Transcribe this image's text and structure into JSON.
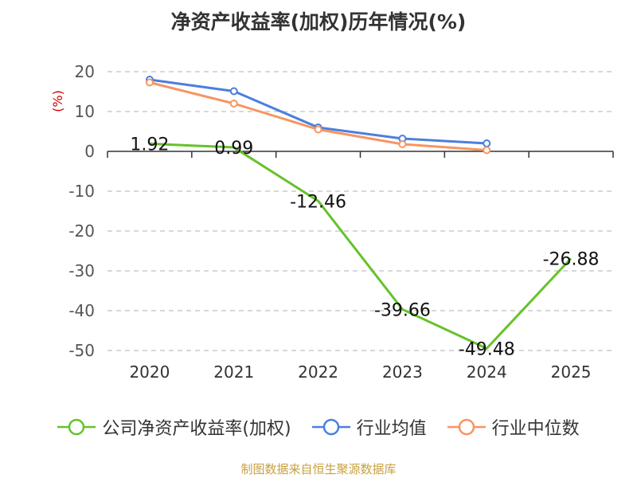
{
  "chart_data": {
    "type": "line",
    "title": "净资产收益率(加权)历年情况(%)",
    "ylabel": "(%)",
    "xlabel": "",
    "categories": [
      "2020",
      "2021",
      "2022",
      "2023",
      "2024",
      "2025"
    ],
    "ylim": [
      -50,
      20
    ],
    "yticks": [
      20,
      10,
      0,
      -10,
      -20,
      -30,
      -40,
      -50
    ],
    "ytick_labels": [
      "20",
      "10",
      "0",
      "-10",
      "-20",
      "-30",
      "-40",
      "-50"
    ],
    "grid": "horizontal-dashed",
    "legend_position": "bottom",
    "series": [
      {
        "name": "公司净资产收益率(加权)",
        "color": "#66c22a",
        "values": [
          1.92,
          0.99,
          -12.46,
          -39.66,
          -49.48,
          -26.88
        ],
        "labels": [
          "1.92",
          "0.99",
          "-12.46",
          "-39.66",
          "-49.48",
          "-26.88"
        ],
        "markers": false
      },
      {
        "name": "行业均值",
        "color": "#4c7fde",
        "values": [
          18.0,
          15.1,
          6.0,
          3.2,
          2.0,
          null
        ],
        "markers": true
      },
      {
        "name": "行业中位数",
        "color": "#f79560",
        "values": [
          17.3,
          12.0,
          5.5,
          1.8,
          0.3,
          null
        ],
        "markers": true
      }
    ]
  },
  "source": "制图数据来自恒生聚源数据库"
}
